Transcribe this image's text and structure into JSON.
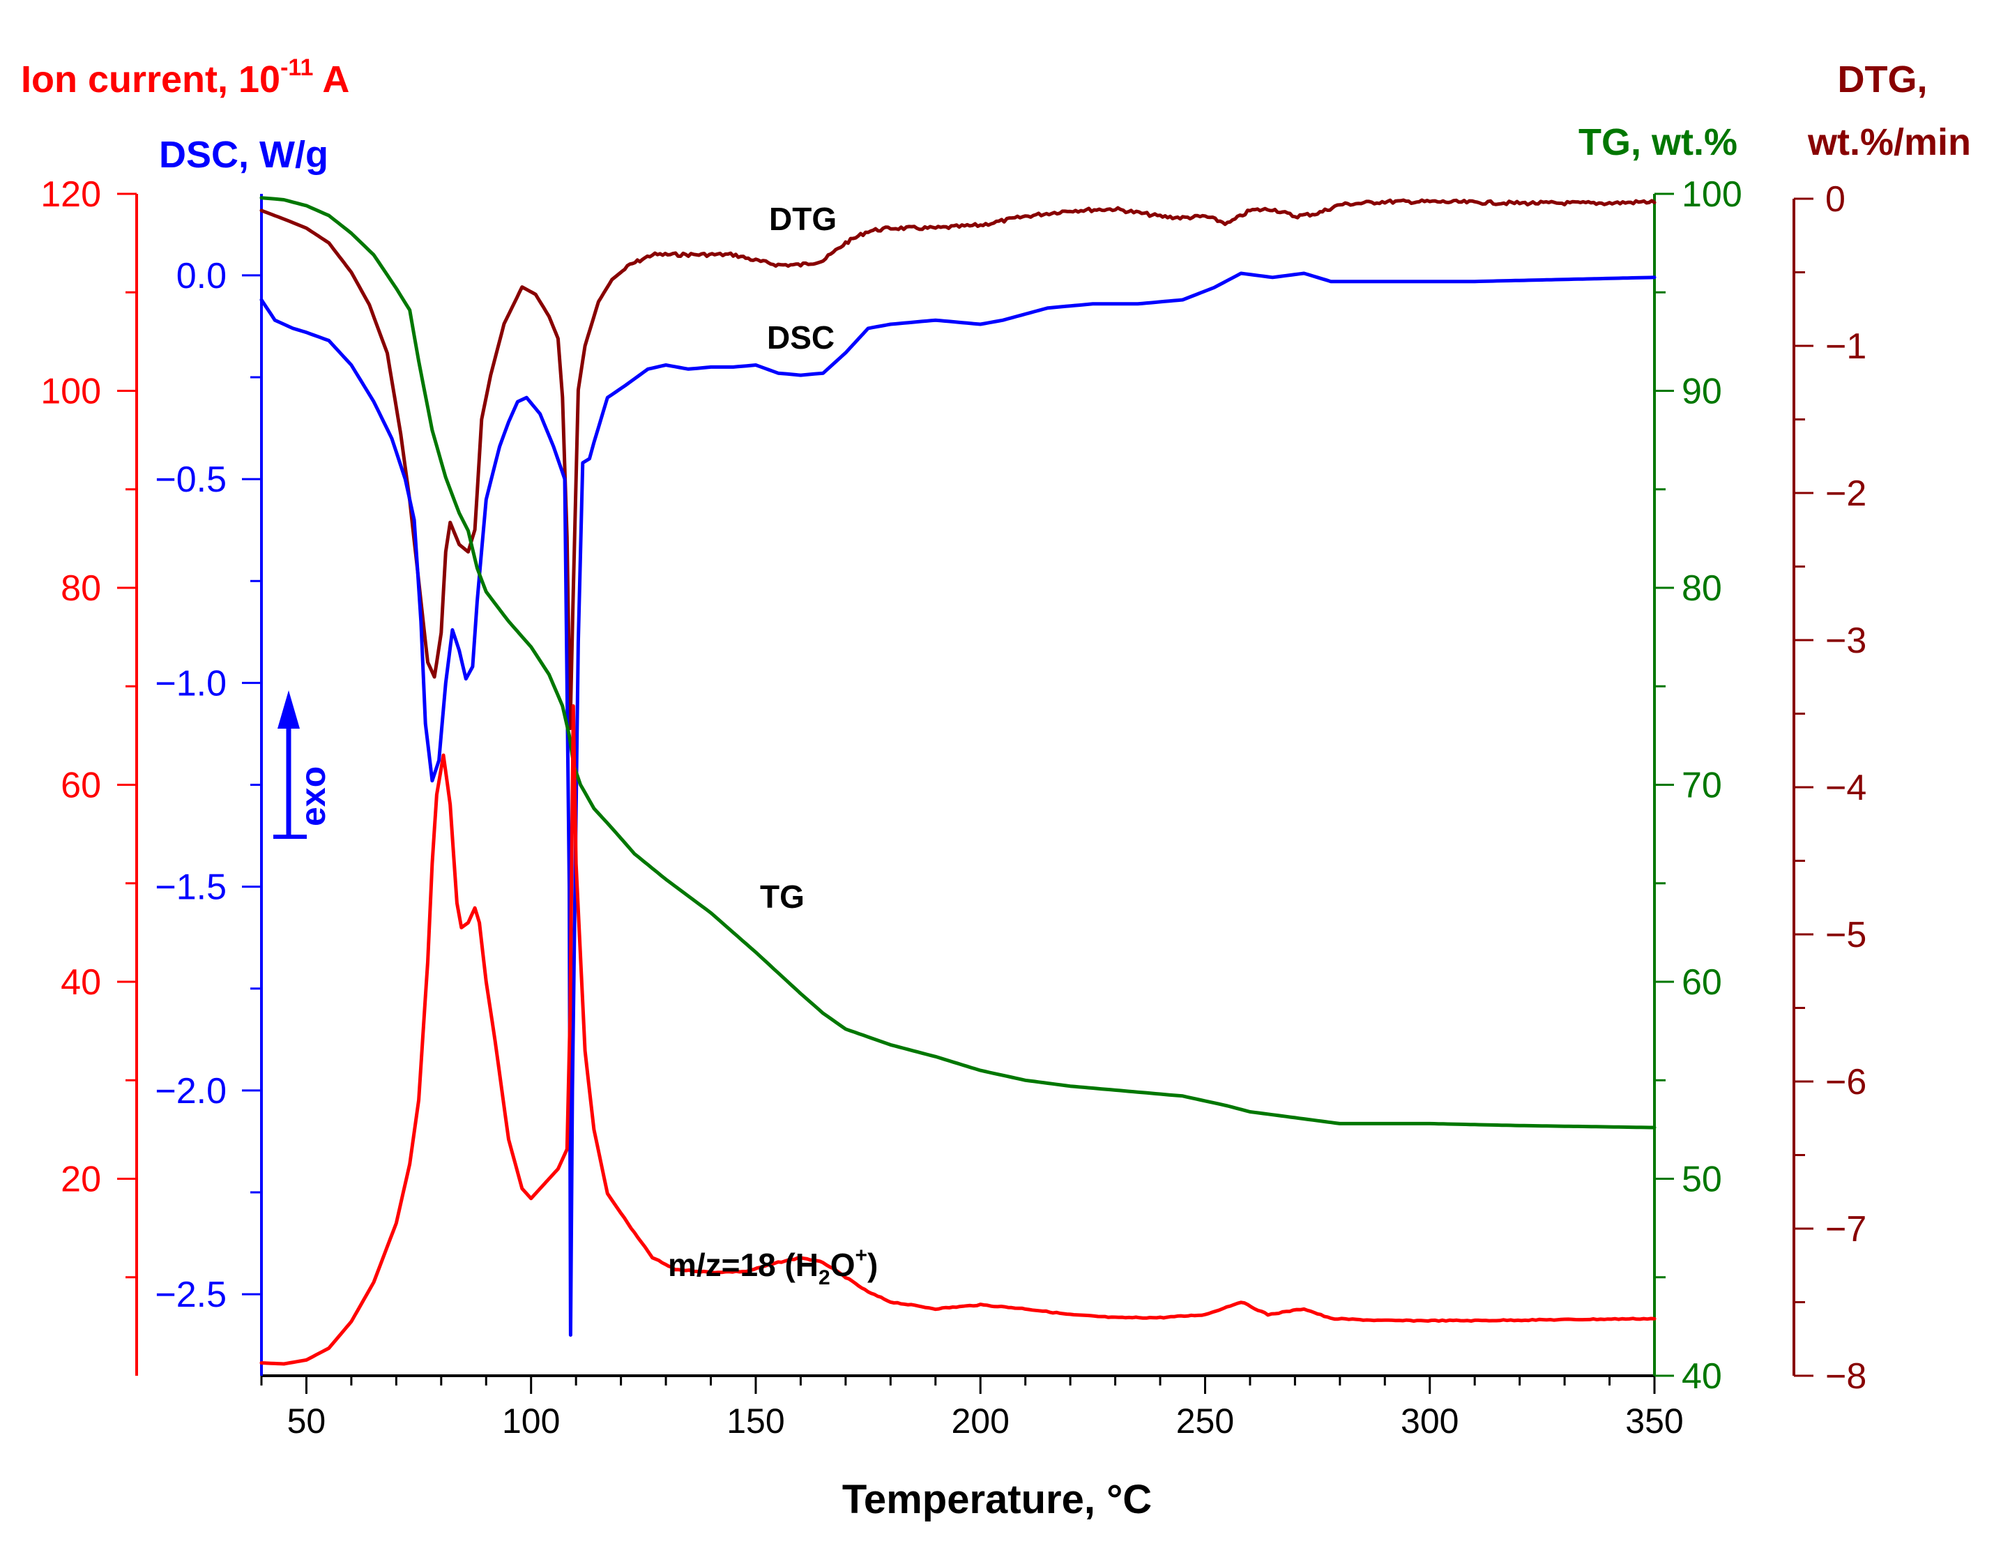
{
  "chart_data": {
    "type": "line",
    "xlabel": "Temperature, °C",
    "xlim": [
      40,
      350
    ],
    "xticks": [
      50,
      100,
      150,
      200,
      250,
      300,
      350
    ],
    "axes": {
      "ion": {
        "label_main": "Ion current, 10",
        "label_sup": "-11",
        "label_tail": " A",
        "range": [
          0,
          120
        ],
        "ticks": [
          20,
          40,
          60,
          80,
          100,
          120
        ],
        "color": "#ff0000"
      },
      "dsc": {
        "label": "DSC, W/g",
        "range": [
          -2.7,
          0.2
        ],
        "ticks": [
          0.0,
          -0.5,
          -1.0,
          -1.5,
          -2.0,
          -2.5
        ],
        "tick_labels": [
          "0.0",
          "−0.5",
          "−1.0",
          "−1.5",
          "−2.0",
          "−2.5"
        ],
        "color": "#0000ff"
      },
      "tg": {
        "label": "TG, wt.%",
        "range": [
          40,
          100
        ],
        "ticks": [
          40,
          50,
          60,
          70,
          80,
          90,
          100
        ],
        "color": "#007700"
      },
      "dtg": {
        "label_line1": "DTG,",
        "label_line2": "wt.%/min",
        "range": [
          -8,
          0
        ],
        "ticks": [
          0,
          -1,
          -2,
          -3,
          -4,
          -5,
          -6,
          -7,
          -8
        ],
        "tick_labels": [
          "0",
          "−1",
          "−2",
          "−3",
          "−4",
          "−5",
          "−6",
          "−7",
          "−8"
        ],
        "color": "#880000"
      }
    },
    "series": [
      {
        "name": "DTG",
        "axis": "dtg",
        "color": "#880000",
        "points": [
          [
            40,
            -0.08
          ],
          [
            46,
            -0.15
          ],
          [
            50,
            -0.2
          ],
          [
            55,
            -0.3
          ],
          [
            60,
            -0.5
          ],
          [
            64,
            -0.72
          ],
          [
            68,
            -1.05
          ],
          [
            71,
            -1.6
          ],
          [
            73,
            -2.05
          ],
          [
            75,
            -2.6
          ],
          [
            77,
            -3.15
          ],
          [
            78.5,
            -3.25
          ],
          [
            80,
            -2.95
          ],
          [
            81,
            -2.4
          ],
          [
            82,
            -2.2
          ],
          [
            84,
            -2.35
          ],
          [
            86,
            -2.4
          ],
          [
            87.5,
            -2.25
          ],
          [
            89,
            -1.5
          ],
          [
            91,
            -1.2
          ],
          [
            94,
            -0.85
          ],
          [
            98,
            -0.6
          ],
          [
            101,
            -0.65
          ],
          [
            104,
            -0.8
          ],
          [
            106,
            -0.95
          ],
          [
            107,
            -1.35
          ],
          [
            108,
            -2.3
          ],
          [
            108.7,
            -3.6
          ],
          [
            109.3,
            -2.8
          ],
          [
            110.5,
            -1.3
          ],
          [
            112,
            -1.0
          ],
          [
            115,
            -0.7
          ],
          [
            118,
            -0.55
          ],
          [
            122,
            -0.45
          ],
          [
            127,
            -0.38
          ],
          [
            135,
            -0.38
          ],
          [
            145,
            -0.38
          ],
          [
            150,
            -0.42
          ],
          [
            155,
            -0.45
          ],
          [
            160,
            -0.45
          ],
          [
            165,
            -0.42
          ],
          [
            170,
            -0.3
          ],
          [
            175,
            -0.22
          ],
          [
            180,
            -0.2
          ],
          [
            190,
            -0.2
          ],
          [
            200,
            -0.18
          ],
          [
            210,
            -0.12
          ],
          [
            220,
            -0.08
          ],
          [
            230,
            -0.07
          ],
          [
            240,
            -0.12
          ],
          [
            245,
            -0.13
          ],
          [
            250,
            -0.12
          ],
          [
            255,
            -0.17
          ],
          [
            260,
            -0.08
          ],
          [
            265,
            -0.07
          ],
          [
            270,
            -0.12
          ],
          [
            275,
            -0.1
          ],
          [
            280,
            -0.04
          ],
          [
            290,
            -0.02
          ],
          [
            300,
            -0.02
          ],
          [
            320,
            -0.03
          ],
          [
            340,
            -0.03
          ],
          [
            350,
            -0.02
          ]
        ]
      },
      {
        "name": "DSC",
        "axis": "dsc",
        "color": "#0000ff",
        "points": [
          [
            40,
            -0.06
          ],
          [
            43,
            -0.11
          ],
          [
            47,
            -0.13
          ],
          [
            50,
            -0.14
          ],
          [
            55,
            -0.16
          ],
          [
            60,
            -0.22
          ],
          [
            65,
            -0.31
          ],
          [
            69,
            -0.4
          ],
          [
            72,
            -0.5
          ],
          [
            74,
            -0.6
          ],
          [
            75.5,
            -0.85
          ],
          [
            76.5,
            -1.1
          ],
          [
            78,
            -1.24
          ],
          [
            79.5,
            -1.19
          ],
          [
            81,
            -1.0
          ],
          [
            82.5,
            -0.87
          ],
          [
            84,
            -0.92
          ],
          [
            85.5,
            -0.99
          ],
          [
            87,
            -0.96
          ],
          [
            88,
            -0.8
          ],
          [
            90,
            -0.55
          ],
          [
            93,
            -0.42
          ],
          [
            95,
            -0.36
          ],
          [
            97,
            -0.31
          ],
          [
            99,
            -0.3
          ],
          [
            102,
            -0.34
          ],
          [
            105,
            -0.42
          ],
          [
            107.5,
            -0.5
          ],
          [
            108.5,
            -1.5
          ],
          [
            108.8,
            -2.6
          ],
          [
            109.2,
            -2.0
          ],
          [
            110.5,
            -0.9
          ],
          [
            111.5,
            -0.46
          ],
          [
            113,
            -0.45
          ],
          [
            114,
            -0.41
          ],
          [
            117,
            -0.3
          ],
          [
            121,
            -0.27
          ],
          [
            126,
            -0.23
          ],
          [
            130,
            -0.22
          ],
          [
            135,
            -0.23
          ],
          [
            140,
            -0.225
          ],
          [
            145,
            -0.225
          ],
          [
            150,
            -0.22
          ],
          [
            155,
            -0.24
          ],
          [
            160,
            -0.245
          ],
          [
            165,
            -0.24
          ],
          [
            170,
            -0.19
          ],
          [
            175,
            -0.13
          ],
          [
            180,
            -0.12
          ],
          [
            190,
            -0.11
          ],
          [
            200,
            -0.12
          ],
          [
            205,
            -0.11
          ],
          [
            215,
            -0.08
          ],
          [
            225,
            -0.07
          ],
          [
            235,
            -0.07
          ],
          [
            245,
            -0.06
          ],
          [
            252,
            -0.03
          ],
          [
            258,
            0.005
          ],
          [
            265,
            -0.005
          ],
          [
            272,
            0.005
          ],
          [
            278,
            -0.015
          ],
          [
            290,
            -0.015
          ],
          [
            310,
            -0.015
          ],
          [
            330,
            -0.01
          ],
          [
            350,
            -0.005
          ]
        ]
      },
      {
        "name": "TG",
        "axis": "tg",
        "color": "#007700",
        "points": [
          [
            40,
            99.8
          ],
          [
            45,
            99.7
          ],
          [
            50,
            99.4
          ],
          [
            55,
            98.9
          ],
          [
            60,
            98.0
          ],
          [
            65,
            96.9
          ],
          [
            70,
            95.2
          ],
          [
            73,
            94.1
          ],
          [
            75,
            91.5
          ],
          [
            78,
            88.0
          ],
          [
            81,
            85.6
          ],
          [
            84,
            83.8
          ],
          [
            86,
            82.9
          ],
          [
            88,
            81.0
          ],
          [
            90,
            79.8
          ],
          [
            95,
            78.3
          ],
          [
            100,
            77.0
          ],
          [
            104,
            75.6
          ],
          [
            107,
            74.0
          ],
          [
            108.5,
            72.5
          ],
          [
            109.5,
            71.0
          ],
          [
            111,
            70.0
          ],
          [
            114,
            68.8
          ],
          [
            118,
            67.8
          ],
          [
            123,
            66.5
          ],
          [
            130,
            65.2
          ],
          [
            140,
            63.5
          ],
          [
            150,
            61.5
          ],
          [
            160,
            59.4
          ],
          [
            165,
            58.4
          ],
          [
            170,
            57.6
          ],
          [
            180,
            56.8
          ],
          [
            190,
            56.2
          ],
          [
            200,
            55.5
          ],
          [
            210,
            55.0
          ],
          [
            220,
            54.7
          ],
          [
            230,
            54.5
          ],
          [
            245,
            54.2
          ],
          [
            255,
            53.7
          ],
          [
            260,
            53.4
          ],
          [
            270,
            53.1
          ],
          [
            280,
            52.8
          ],
          [
            300,
            52.8
          ],
          [
            320,
            52.7
          ],
          [
            350,
            52.6
          ]
        ]
      },
      {
        "name": "m/z=18 (H2O+)",
        "axis": "ion",
        "color": "#ff0000",
        "points": [
          [
            40,
            1.3
          ],
          [
            45,
            1.2
          ],
          [
            50,
            1.6
          ],
          [
            55,
            2.8
          ],
          [
            60,
            5.5
          ],
          [
            65,
            9.5
          ],
          [
            70,
            15.5
          ],
          [
            73,
            21.5
          ],
          [
            75,
            28
          ],
          [
            76,
            35
          ],
          [
            77,
            42
          ],
          [
            78,
            52
          ],
          [
            79,
            59
          ],
          [
            80.5,
            63
          ],
          [
            82,
            58
          ],
          [
            83.5,
            48
          ],
          [
            84.5,
            45.5
          ],
          [
            86,
            46
          ],
          [
            87.5,
            47.5
          ],
          [
            88.5,
            46
          ],
          [
            90,
            40
          ],
          [
            92,
            34
          ],
          [
            95,
            24
          ],
          [
            98,
            19
          ],
          [
            100,
            18
          ],
          [
            104,
            20
          ],
          [
            106,
            21
          ],
          [
            108,
            23
          ],
          [
            108.7,
            37
          ],
          [
            109.4,
            68
          ],
          [
            110,
            52
          ],
          [
            112,
            33
          ],
          [
            114,
            25
          ],
          [
            117,
            18.5
          ],
          [
            120,
            16.5
          ],
          [
            123,
            14.5
          ],
          [
            127,
            12
          ],
          [
            132,
            10.8
          ],
          [
            140,
            10.5
          ],
          [
            148,
            10.6
          ],
          [
            155,
            11.5
          ],
          [
            160,
            12
          ],
          [
            165,
            11.5
          ],
          [
            170,
            10
          ],
          [
            175,
            8.5
          ],
          [
            180,
            7.5
          ],
          [
            190,
            6.8
          ],
          [
            200,
            7.2
          ],
          [
            210,
            6.8
          ],
          [
            220,
            6.2
          ],
          [
            230,
            5.9
          ],
          [
            240,
            5.9
          ],
          [
            250,
            6.2
          ],
          [
            258,
            7.5
          ],
          [
            264,
            6.2
          ],
          [
            272,
            6.8
          ],
          [
            278,
            5.8
          ],
          [
            290,
            5.6
          ],
          [
            310,
            5.6
          ],
          [
            330,
            5.7
          ],
          [
            350,
            5.8
          ]
        ]
      }
    ],
    "annotations": {
      "dtg": "DTG",
      "dsc": "DSC",
      "tg": "TG",
      "ion_main": "m/z=18 (H",
      "ion_sub": "2",
      "ion_mid": "O",
      "ion_sup": "+",
      "ion_tail": ")",
      "exo": "exo"
    }
  }
}
